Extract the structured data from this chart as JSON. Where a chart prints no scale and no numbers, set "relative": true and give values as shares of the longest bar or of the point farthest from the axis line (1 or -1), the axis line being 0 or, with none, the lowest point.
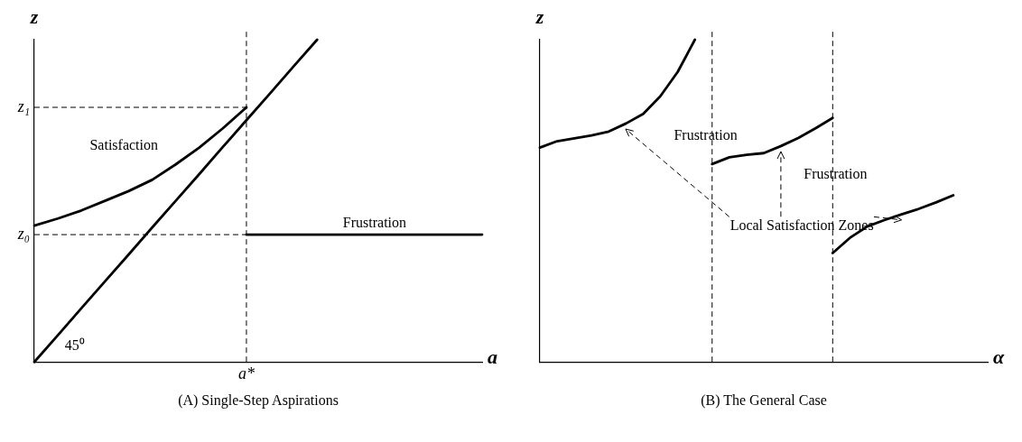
{
  "chart_data": [
    {
      "type": "line",
      "title": "(A) Single-Step Aspirations",
      "xlabel": "a",
      "ylabel": "z",
      "relative": true,
      "grid": false,
      "legend": false,
      "marker": "none",
      "line_style": "solid",
      "categories": [
        null,
        null,
        null,
        null,
        null,
        null,
        null,
        null,
        null,
        null,
        null,
        null,
        null,
        null,
        null,
        null,
        null,
        null,
        null,
        null
      ],
      "series": [
        {
          "color": "#000000",
          "values": [
            0.423,
            0.445,
            0.47,
            0.5,
            0.53,
            0.565,
            0.613,
            0.665,
            0.725,
            0.79,
            null,
            null,
            null,
            null,
            null,
            null,
            null,
            null,
            null,
            null
          ]
        },
        {
          "color": "#000000",
          "values": [
            null,
            null,
            null,
            null,
            null,
            null,
            null,
            null,
            null,
            0.395,
            0.395,
            0.395,
            0.395,
            0.395,
            0.395,
            0.395,
            0.395,
            0.395,
            0.395,
            0.395
          ]
        },
        {
          "color": "#000000",
          "values": [
            0,
            0.083,
            0.167,
            0.25,
            0.333,
            0.417,
            0.5,
            0.583,
            0.667,
            0.75,
            0.833,
            0.917,
            1,
            null,
            null,
            null,
            null,
            null,
            null,
            null
          ]
        }
      ],
      "ref_lines": [
        {
          "axis": "x",
          "value": "a*",
          "line_style": "dashed"
        },
        {
          "axis": "y",
          "value": 0.79,
          "label": "z₁",
          "line_style": "dashed"
        },
        {
          "axis": "y",
          "value": 0.395,
          "label": "z₀",
          "line_style": "dashed"
        }
      ],
      "annotations": [
        "Satisfaction",
        "Frustration",
        "45⁰"
      ]
    },
    {
      "type": "line",
      "title": "(B) The General Case",
      "xlabel": "α",
      "ylabel": "z",
      "relative": true,
      "grid": false,
      "legend": false,
      "marker": "none",
      "line_style": "solid",
      "categories": [
        null,
        null,
        null,
        null,
        null,
        null,
        null,
        null,
        null,
        null,
        null,
        null,
        null,
        null,
        null,
        null,
        null,
        null,
        null,
        null,
        null,
        null,
        null,
        null,
        null,
        null,
        null
      ],
      "series": [
        {
          "color": "#000000",
          "values": [
            0.665,
            0.685,
            0.694,
            0.703,
            0.715,
            0.74,
            0.77,
            0.825,
            0.9,
            1,
            null,
            null,
            null,
            null,
            null,
            null,
            null,
            null,
            null,
            null,
            null,
            null,
            null,
            null,
            null,
            null,
            null
          ]
        },
        {
          "color": "#000000",
          "values": [
            null,
            null,
            null,
            null,
            null,
            null,
            null,
            null,
            null,
            null,
            0.614,
            0.635,
            0.643,
            0.648,
            0.67,
            0.695,
            0.725,
            0.757,
            null,
            null,
            null,
            null,
            null,
            null,
            null,
            null,
            null
          ]
        },
        {
          "color": "#000000",
          "values": [
            null,
            null,
            null,
            null,
            null,
            null,
            null,
            null,
            null,
            null,
            null,
            null,
            null,
            null,
            null,
            null,
            null,
            0.338,
            0.385,
            0.42,
            0.44,
            0.458,
            0.475,
            0.495,
            0.517,
            null,
            null
          ]
        }
      ],
      "annotations": [
        "Frustration",
        "Frustration",
        "Local Satisfaction Zones"
      ]
    }
  ]
}
